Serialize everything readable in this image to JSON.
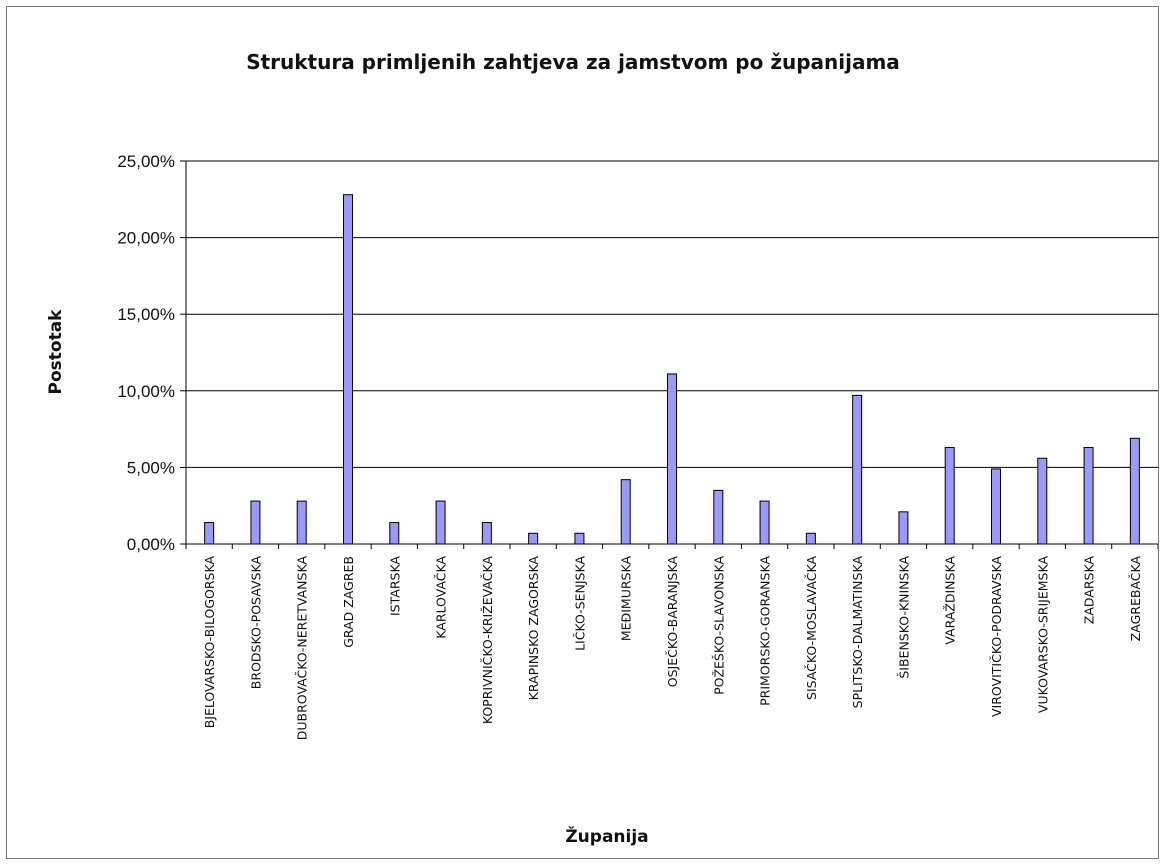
{
  "chart_data": {
    "type": "bar",
    "title": "Struktura primljenih zahtjeva za jamstvom po županijama",
    "xlabel": "Županija",
    "ylabel": "Postotak",
    "ylim": [
      0,
      25
    ],
    "yticks": [
      "0,00%",
      "5,00%",
      "10,00%",
      "15,00%",
      "20,00%",
      "25,00%"
    ],
    "grid": true,
    "legend": "none",
    "bar_color": "#9999ff",
    "categories": [
      "BJELOVARSKO-BILOGORSKA",
      "BRODSKO-POSAVSKA",
      "DUBROVAČKO-NERETVANSKA",
      "GRAD ZAGREB",
      "ISTARSKA",
      "KARLOVAČKA",
      "KOPRIVNIČKO-KRIŽEVAČKA",
      "KRAPINSKO ZAGORSKA",
      "LIČKO-SENJSKA",
      "MEĐIMURSKA",
      "OSJEČKO-BARANJSKA",
      "POŽEŠKO-SLAVONSKA",
      "PRIMORSKO-GORANSKA",
      "SISAČKO-MOSLAVAČKA",
      "SPLITSKO-DALMATINSKA",
      "ŠIBENSKO-KNINSKA",
      "VARAŽDINSKA",
      "VIROVITIČKO-PODRAVSKA",
      "VUKOVARSKO-SRIJEMSKA",
      "ZADARSKA",
      "ZAGREBAČKA"
    ],
    "values": [
      1.4,
      2.8,
      2.8,
      22.8,
      1.4,
      2.8,
      1.4,
      0.7,
      0.7,
      4.2,
      11.1,
      3.5,
      2.8,
      0.7,
      9.7,
      2.1,
      6.3,
      4.9,
      5.6,
      6.3,
      6.9
    ]
  }
}
